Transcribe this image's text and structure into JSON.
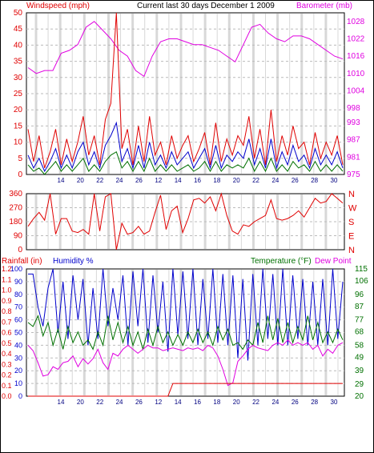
{
  "header": {
    "title": "Current last 30 days December 1 2009",
    "left_label": "Windspeed (mph)",
    "right_label": "Barometer (mb)"
  },
  "colors": {
    "red": "#e00000",
    "blue": "#0000cc",
    "green": "#007000",
    "magenta": "#e000e0",
    "grid_band": "#d8d8d8",
    "grid_dash": "#bbbbbb"
  },
  "chart_data": [
    {
      "type": "line",
      "name": "wind-barometer",
      "title": "Current last 30 days December 1 2009",
      "ylabel_left": "Windspeed (mph)",
      "ylabel_right": "Barometer (mb)",
      "ylim_left": [
        0,
        50
      ],
      "ylim_right": [
        975,
        1031
      ],
      "left_ticks": [
        0,
        5,
        10,
        15,
        20,
        25,
        30,
        35,
        40,
        45,
        50
      ],
      "right_ticks": [
        975,
        981,
        987,
        993,
        998,
        1004,
        1010,
        1016,
        1022,
        1028
      ],
      "x_ticks": [
        "14",
        "20",
        "22",
        "24",
        "26",
        "12",
        "14",
        "16",
        "18",
        "20",
        "22",
        "24",
        "26",
        "28",
        "30"
      ],
      "series": [
        {
          "name": "Barometer",
          "axis": "right",
          "color": "#e000e0",
          "values": [
            1012,
            1010,
            1011,
            1011,
            1017,
            1018,
            1020,
            1026,
            1028,
            1025,
            1022,
            1018,
            1016,
            1011,
            1009,
            1016,
            1021,
            1022,
            1022,
            1021,
            1020,
            1020,
            1019,
            1018,
            1016,
            1014,
            1020,
            1026,
            1027,
            1024,
            1022,
            1021,
            1023,
            1023,
            1022,
            1020,
            1018,
            1016,
            1015
          ]
        },
        {
          "name": "Gust",
          "axis": "left",
          "color": "#e00000",
          "values": [
            14,
            4,
            12,
            2,
            7,
            14,
            3,
            11,
            4,
            10,
            18,
            6,
            12,
            3,
            17,
            22,
            50,
            8,
            14,
            3,
            15,
            4,
            18,
            6,
            10,
            3,
            12,
            5,
            9,
            12,
            4,
            8,
            13,
            3,
            16,
            4,
            11,
            6,
            12,
            9,
            18,
            5,
            14,
            3,
            20,
            4,
            12,
            6,
            15,
            8,
            10,
            3,
            13,
            5,
            10,
            6,
            12,
            3
          ]
        },
        {
          "name": "Avg wind",
          "axis": "left",
          "color": "#0000cc",
          "values": [
            6,
            2,
            5,
            1,
            4,
            8,
            2,
            6,
            2,
            7,
            10,
            3,
            7,
            2,
            9,
            12,
            16,
            4,
            8,
            2,
            9,
            2,
            10,
            3,
            6,
            2,
            7,
            3,
            5,
            7,
            2,
            5,
            8,
            2,
            9,
            2,
            6,
            4,
            7,
            5,
            11,
            3,
            8,
            2,
            11,
            2,
            7,
            3,
            9,
            4,
            6,
            2,
            8,
            3,
            6,
            3,
            7,
            2
          ]
        },
        {
          "name": "Low wind",
          "axis": "left",
          "color": "#007000",
          "values": [
            3,
            1,
            2,
            0,
            2,
            4,
            1,
            3,
            1,
            3,
            5,
            1,
            3,
            1,
            4,
            6,
            7,
            2,
            4,
            1,
            4,
            1,
            5,
            1,
            3,
            1,
            3,
            1,
            2,
            3,
            1,
            2,
            4,
            1,
            4,
            1,
            3,
            2,
            3,
            2,
            5,
            1,
            4,
            1,
            5,
            1,
            3,
            1,
            4,
            2,
            3,
            1,
            4,
            1,
            3,
            1,
            3,
            1
          ]
        }
      ]
    },
    {
      "type": "line",
      "name": "wind-direction",
      "ylim": [
        0,
        360
      ],
      "left_ticks": [
        0,
        90,
        180,
        270,
        360
      ],
      "right_ticks": [
        "N",
        "W",
        "S",
        "E",
        "N"
      ],
      "series": [
        {
          "name": "Direction",
          "color": "#e00000",
          "values": [
            150,
            200,
            240,
            190,
            360,
            100,
            200,
            200,
            120,
            110,
            130,
            100,
            360,
            120,
            340,
            360,
            0,
            170,
            100,
            110,
            150,
            100,
            120,
            240,
            350,
            130,
            250,
            280,
            110,
            200,
            320,
            330,
            300,
            340,
            250,
            360,
            220,
            120,
            100,
            160,
            150,
            180,
            200,
            220,
            320,
            200,
            190,
            200,
            220,
            250,
            210,
            270,
            330,
            300,
            310,
            360,
            330,
            300
          ]
        }
      ]
    },
    {
      "type": "line",
      "name": "rain-humidity-temp",
      "ylabel_left_1": "Rainfall (in)",
      "ylabel_left_2": "Humidity %",
      "ylabel_right_1": "Temperature (°F)",
      "ylabel_right_2": "Dew Point",
      "ylim_left": [
        0,
        100
      ],
      "ylim_right": [
        20,
        115
      ],
      "humidity_ticks": [
        0,
        10,
        20,
        30,
        40,
        50,
        60,
        70,
        80,
        90,
        100
      ],
      "rain_ticks": [
        "0.0",
        "0.1",
        "0.2",
        "0.3",
        "0.4",
        "0.5",
        "0.6",
        "0.7",
        "0.8",
        "0.9",
        "1.0",
        "1.1",
        "1.2"
      ],
      "temp_ticks": [
        20,
        29,
        39,
        49,
        58,
        68,
        77,
        87,
        96,
        106,
        115
      ],
      "series": [
        {
          "name": "Humidity",
          "color": "#0000cc",
          "values": [
            96,
            96,
            70,
            55,
            85,
            100,
            50,
            90,
            45,
            95,
            60,
            92,
            40,
            85,
            45,
            100,
            55,
            85,
            60,
            95,
            40,
            98,
            55,
            100,
            42,
            95,
            50,
            90,
            35,
            100,
            48,
            98,
            45,
            100,
            40,
            92,
            45,
            100,
            42,
            96,
            40,
            95,
            30,
            92,
            28,
            96,
            40,
            100,
            45,
            96,
            40,
            100,
            40,
            95,
            45,
            92,
            40,
            90,
            40,
            92,
            40,
            100,
            45,
            90
          ]
        },
        {
          "name": "Temperature",
          "color": "#007000",
          "values": [
            75,
            72,
            80,
            65,
            75,
            58,
            70,
            55,
            72,
            60,
            68,
            58,
            62,
            55,
            68,
            58,
            80,
            62,
            75,
            60,
            72,
            58,
            68,
            55,
            70,
            58,
            72,
            60,
            68,
            58,
            66,
            58,
            68,
            60,
            70,
            60,
            68,
            58,
            72,
            62,
            70,
            58,
            60,
            55,
            62,
            58,
            75,
            60,
            80,
            62,
            78,
            60,
            75,
            60,
            72,
            62,
            80,
            62,
            75,
            60,
            68,
            60,
            70,
            62
          ]
        },
        {
          "name": "Dew Point",
          "color": "#e000e0",
          "values": [
            58,
            54,
            45,
            35,
            36,
            42,
            40,
            45,
            46,
            50,
            42,
            48,
            44,
            48,
            55,
            45,
            40,
            52,
            50,
            55,
            58,
            55,
            52,
            55,
            58,
            56,
            56,
            54,
            55,
            56,
            55,
            54,
            56,
            55,
            56,
            54,
            58,
            56,
            50,
            40,
            28,
            30,
            46,
            50,
            55,
            58,
            56,
            55,
            54,
            58,
            60,
            58,
            62,
            58,
            60,
            58,
            60,
            55,
            58,
            50,
            55,
            52,
            58,
            60
          ]
        },
        {
          "name": "Rainfall",
          "color": "#e00000",
          "values": [
            0,
            0,
            0,
            0,
            0,
            0,
            0,
            0,
            0,
            0,
            0,
            0,
            0,
            0,
            0,
            0,
            0,
            0,
            0,
            0,
            0,
            0,
            0,
            0,
            0,
            0,
            0,
            0,
            0,
            0.12,
            0.12,
            0.12,
            0.12,
            0.12,
            0.12,
            0.12,
            0.12,
            0.12,
            0.12,
            0.12,
            0.12,
            0.12,
            0.12,
            0.12,
            0.12,
            0.12,
            0.12,
            0.12,
            0.12,
            0.12,
            0.12,
            0.12,
            0.12,
            0.12,
            0.12,
            0.12,
            0.12,
            0.12,
            0.12,
            0.12,
            0.12,
            0.12,
            0.12,
            0.12
          ]
        }
      ]
    }
  ]
}
